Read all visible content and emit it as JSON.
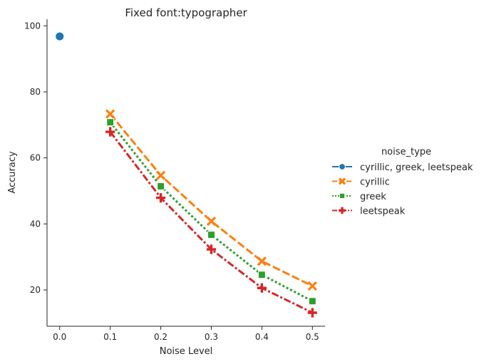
{
  "chart_data": {
    "type": "line",
    "title": "Fixed font:typographer",
    "xlabel": "Noise Level",
    "ylabel": "Accuracy",
    "xlim": [
      -0.025,
      0.525
    ],
    "ylim": [
      9,
      102
    ],
    "xticks": [
      "0.0",
      "0.1",
      "0.2",
      "0.3",
      "0.4",
      "0.5"
    ],
    "yticks": [
      "20",
      "40",
      "60",
      "80",
      "100"
    ],
    "legend_title": "noise_type",
    "legend_position": "right",
    "grid": false,
    "series": [
      {
        "name": "cyrillic, greek, leetspeak",
        "color": "#1f77b4",
        "marker": "circle",
        "dash": "solid",
        "x": [
          0.0
        ],
        "y": [
          96.8
        ]
      },
      {
        "name": "cyrillic",
        "color": "#ff7f0e",
        "marker": "x",
        "dash": "dashed",
        "x": [
          0.1,
          0.2,
          0.3,
          0.4,
          0.5
        ],
        "y": [
          73.3,
          54.7,
          40.8,
          28.7,
          21.2
        ]
      },
      {
        "name": "greek",
        "color": "#2ca02c",
        "marker": "square",
        "dash": "dotted",
        "x": [
          0.1,
          0.2,
          0.3,
          0.4,
          0.5
        ],
        "y": [
          70.8,
          51.4,
          36.7,
          24.6,
          16.6
        ]
      },
      {
        "name": "leetspeak",
        "color": "#d62728",
        "marker": "plus",
        "dash": "dashdot",
        "x": [
          0.1,
          0.2,
          0.3,
          0.4,
          0.5
        ],
        "y": [
          67.9,
          47.9,
          32.3,
          20.6,
          13.1
        ]
      }
    ]
  }
}
